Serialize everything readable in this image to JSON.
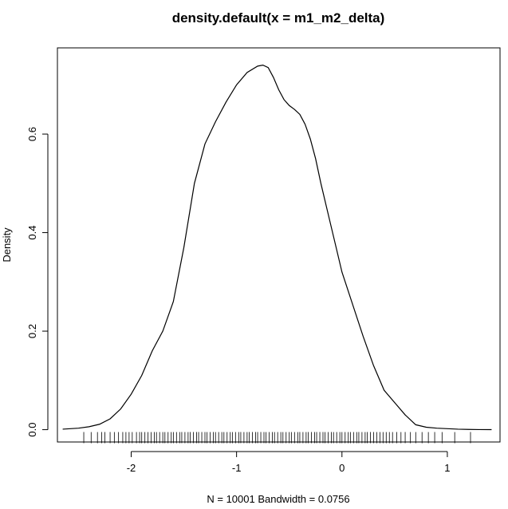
{
  "chart_data": {
    "type": "line",
    "title": "density.default(x = m1_m2_delta)",
    "xlabel": "N = 10001   Bandwidth = 0.0756",
    "ylabel": "Density",
    "xlim": [
      -2.7,
      1.5
    ],
    "ylim": [
      -0.025,
      0.775
    ],
    "x_ticks": [
      -2,
      -1,
      0,
      1
    ],
    "y_ticks": [
      0.0,
      0.2,
      0.4,
      0.6
    ],
    "x_tick_labels": [
      "-2",
      "-1",
      "0",
      "1"
    ],
    "y_tick_labels": [
      "0.0",
      "0.2",
      "0.4",
      "0.6"
    ],
    "series": [
      {
        "color": "#000000",
        "x": [
          -2.65,
          -2.5,
          -2.4,
          -2.3,
          -2.2,
          -2.1,
          -2.0,
          -1.9,
          -1.8,
          -1.7,
          -1.6,
          -1.5,
          -1.4,
          -1.3,
          -1.2,
          -1.1,
          -1.0,
          -0.9,
          -0.8,
          -0.75,
          -0.7,
          -0.65,
          -0.6,
          -0.55,
          -0.5,
          -0.45,
          -0.4,
          -0.35,
          -0.3,
          -0.25,
          -0.2,
          -0.15,
          -0.1,
          -0.05,
          0.0,
          0.1,
          0.2,
          0.3,
          0.4,
          0.5,
          0.6,
          0.7,
          0.8,
          0.9,
          1.0,
          1.1,
          1.2,
          1.3,
          1.42
        ],
        "y": [
          0.001,
          0.003,
          0.006,
          0.011,
          0.022,
          0.042,
          0.072,
          0.11,
          0.16,
          0.2,
          0.26,
          0.37,
          0.5,
          0.58,
          0.625,
          0.665,
          0.7,
          0.725,
          0.738,
          0.74,
          0.735,
          0.715,
          0.69,
          0.67,
          0.658,
          0.65,
          0.64,
          0.62,
          0.59,
          0.55,
          0.5,
          0.455,
          0.41,
          0.365,
          0.32,
          0.255,
          0.19,
          0.13,
          0.08,
          0.055,
          0.03,
          0.01,
          0.005,
          0.003,
          0.002,
          0.001,
          0.0005,
          0.0002,
          0.0001
        ]
      }
    ],
    "rug": [
      -2.45,
      -2.38,
      -2.32,
      -2.28,
      -2.25,
      -2.2,
      -2.16,
      -2.12,
      -2.08,
      -2.05,
      -2.02,
      -1.99,
      -1.95,
      -1.92,
      -1.9,
      -1.87,
      -1.84,
      -1.81,
      -1.78,
      -1.76,
      -1.73,
      -1.7,
      -1.68,
      -1.65,
      -1.62,
      -1.6,
      -1.57,
      -1.54,
      -1.52,
      -1.49,
      -1.46,
      -1.44,
      -1.41,
      -1.38,
      -1.36,
      -1.33,
      -1.3,
      -1.28,
      -1.25,
      -1.22,
      -1.2,
      -1.17,
      -1.14,
      -1.12,
      -1.09,
      -1.06,
      -1.04,
      -1.01,
      -0.98,
      -0.96,
      -0.93,
      -0.9,
      -0.88,
      -0.85,
      -0.82,
      -0.8,
      -0.77,
      -0.74,
      -0.72,
      -0.69,
      -0.66,
      -0.64,
      -0.61,
      -0.58,
      -0.56,
      -0.53,
      -0.5,
      -0.48,
      -0.45,
      -0.42,
      -0.4,
      -0.37,
      -0.34,
      -0.32,
      -0.29,
      -0.26,
      -0.24,
      -0.21,
      -0.18,
      -0.16,
      -0.13,
      -0.1,
      -0.08,
      -0.05,
      -0.02,
      0.0,
      0.03,
      0.06,
      0.08,
      0.11,
      0.14,
      0.16,
      0.19,
      0.22,
      0.24,
      0.27,
      0.3,
      0.33,
      0.36,
      0.39,
      0.42,
      0.45,
      0.48,
      0.52,
      0.56,
      0.6,
      0.65,
      0.7,
      0.76,
      0.82,
      0.88,
      0.95,
      1.07,
      1.22
    ]
  }
}
